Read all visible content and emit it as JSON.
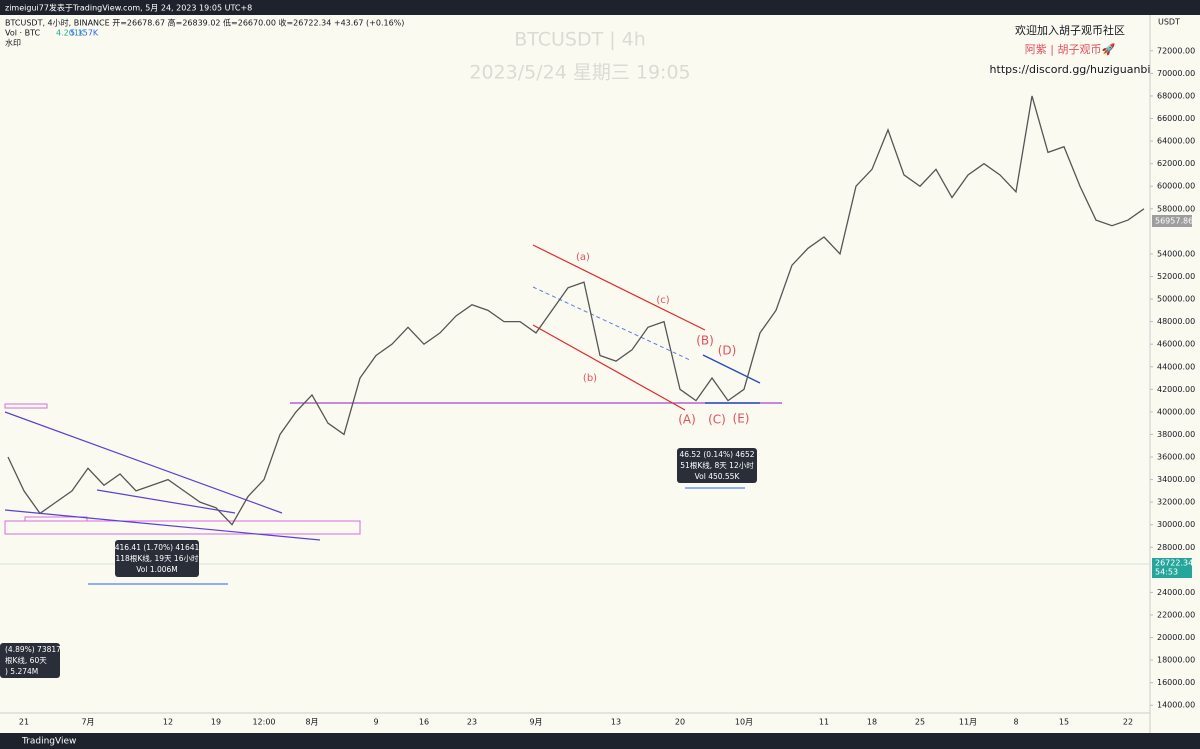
{
  "header": {
    "publisher": "zimeigui77发表于TradingView.com,  5月 24, 2023 19:05 UTC+8",
    "symbol_line": "BTCUSDT, 4小时, BINANCE  开=26678.67  高=26839.02  低=26670.00  收=26722.34  +43.67 (+0.16%)",
    "vol_label": "Vol · BTC",
    "vol_value1": "4.201K",
    "vol_value2": "5.157K",
    "watermark_label": "水印"
  },
  "watermark": {
    "symbol": "BTCUSDT | 4h",
    "datetime": "2023/5/24 星期三 19:05"
  },
  "community": {
    "line1": "欢迎加入胡子观币社区",
    "line2": "阿紫 | 胡子观币🚀",
    "line3": "https://discord.gg/huziguanbi"
  },
  "waves": {
    "a": "(a)",
    "b": "(b)",
    "c": "(c)",
    "A": "(A)",
    "B": "(B)",
    "C": "(C)",
    "D": "(D)",
    "E": "(E)"
  },
  "measure1": {
    "line1": "416.41 (1.70%) 41641",
    "line2": "118根K线, 19天 16小时",
    "line3": "Vol 1.006M"
  },
  "measure2": {
    "line1": "46.52 (0.14%) 4652",
    "line2": "51根K线, 8天 12小时",
    "line3": "Vol 450.55K"
  },
  "measure3": {
    "line1": "(4.89%) 73817",
    "line2": "根K线, 60天",
    "line3": ") 5.274M"
  },
  "price_axis": {
    "unit": "USDT",
    "tag1": "56957.86",
    "tag2": "26722.34",
    "tag3": "54:53"
  },
  "footer": {
    "brand": "TradingView"
  },
  "chart_data": {
    "type": "line",
    "color": "#555555",
    "categories": [
      null,
      "21",
      null,
      null,
      null,
      "7月",
      null,
      null,
      null,
      null,
      "12",
      null,
      null,
      "19",
      null,
      null,
      "12:00",
      null,
      null,
      "8月",
      null,
      null,
      null,
      "9",
      null,
      null,
      "16",
      null,
      null,
      "23",
      null,
      null,
      null,
      "9月",
      null,
      null,
      null,
      null,
      "13",
      null,
      null,
      null,
      "20",
      null,
      null,
      null,
      "10月",
      null,
      null,
      null,
      null,
      "11",
      null,
      null,
      "18",
      null,
      null,
      "25",
      null,
      null,
      "11月",
      null,
      null,
      "8",
      null,
      null,
      "15",
      null,
      null,
      null,
      "22",
      null
    ],
    "values": [
      36000,
      33000,
      31000,
      32000,
      33000,
      35000,
      33500,
      34500,
      33000,
      33500,
      34000,
      33000,
      32000,
      31500,
      30000,
      32500,
      34000,
      38000,
      40000,
      41500,
      39000,
      38000,
      43000,
      45000,
      46000,
      47500,
      46000,
      47000,
      48500,
      49500,
      49000,
      48000,
      48000,
      47000,
      49000,
      51000,
      51500,
      45000,
      44500,
      45500,
      47500,
      48000,
      42000,
      41000,
      43000,
      41000,
      42000,
      47000,
      49000,
      53000,
      54500,
      55500,
      54000,
      60000,
      61500,
      65000,
      61000,
      60000,
      61500,
      59000,
      61000,
      62000,
      61000,
      59500,
      68000,
      63000,
      63500,
      60000,
      57000,
      56500,
      57000,
      58000
    ],
    "ylim": [
      13400,
      75000
    ],
    "yticks": [
      {
        "value": 14000,
        "label": "14000.00"
      },
      {
        "value": 16000,
        "label": "16000.00"
      },
      {
        "value": 18000,
        "label": "18000.00"
      },
      {
        "value": 20000,
        "label": "20000.00"
      },
      {
        "value": 22000,
        "label": "22000.00"
      },
      {
        "value": 24000,
        "label": "24000.00"
      },
      {
        "value": 28000,
        "label": "28000.00"
      },
      {
        "value": 30000,
        "label": "30000.00"
      },
      {
        "value": 32000,
        "label": "32000.00"
      },
      {
        "value": 34000,
        "label": "34000.00"
      },
      {
        "value": 36000,
        "label": "36000.00"
      },
      {
        "value": 38000,
        "label": "38000.00"
      },
      {
        "value": 40000,
        "label": "40000.00"
      },
      {
        "value": 42000,
        "label": "42000.00"
      },
      {
        "value": 44000,
        "label": "44000.00"
      },
      {
        "value": 46000,
        "label": "46000.00"
      },
      {
        "value": 48000,
        "label": "48000.00"
      },
      {
        "value": 50000,
        "label": "50000.00"
      },
      {
        "value": 52000,
        "label": "52000.00"
      },
      {
        "value": 54000,
        "label": "54000.00"
      },
      {
        "value": 58000,
        "label": "58000.00"
      },
      {
        "value": 60000,
        "label": "60000.00"
      },
      {
        "value": 62000,
        "label": "62000.00"
      },
      {
        "value": 64000,
        "label": "64000.00"
      },
      {
        "value": 66000,
        "label": "66000.00"
      },
      {
        "value": 68000,
        "label": "68000.00"
      },
      {
        "value": 70000,
        "label": "70000.00"
      },
      {
        "value": 72000,
        "label": "72000.00"
      }
    ],
    "grid": false
  }
}
